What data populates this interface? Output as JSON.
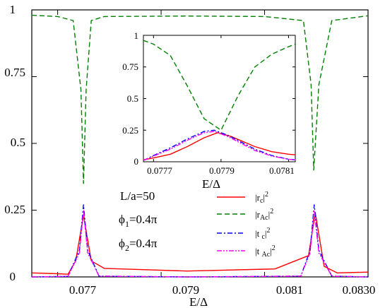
{
  "chart_data": [
    {
      "type": "line",
      "role": "main",
      "xlabel": "E/Δ",
      "ylabel": "",
      "xlim": [
        0.0765,
        0.083
      ],
      "ylim": [
        0,
        1
      ],
      "x_ticks": [
        0.077,
        0.079,
        0.081,
        0.083
      ],
      "x_tick_labels": [
        "0.077",
        "0.079",
        "0.081",
        "0.0830"
      ],
      "y_ticks": [
        0,
        0.25,
        0.5,
        0.75,
        1
      ],
      "y_tick_labels": [
        "0",
        "0.25",
        "0.5",
        "0.75",
        "1"
      ],
      "annotations": [
        {
          "text": "L/a=50"
        },
        {
          "base": "ϕ",
          "sub": "1",
          "tail": "=0.4π"
        },
        {
          "base": "ϕ",
          "sub": "2",
          "tail": "=0.4π"
        }
      ],
      "legend": {
        "placement": "bottom-right",
        "entries": [
          {
            "pre": "|r",
            "sub": "c",
            "post": "|",
            "sup": "2",
            "color": "#ff0000",
            "dash": "solid"
          },
          {
            "pre": "|r",
            "sub": "Ac",
            "post": "|",
            "sup": "2",
            "color": "#008000",
            "dash": "dashed"
          },
          {
            "pre": "|t ",
            "sub": "c",
            "post": "|",
            "sup": "2",
            "color": "#0000ff",
            "dash": "dashdot"
          },
          {
            "pre": "|t ",
            "sub": "Ac",
            "post": "|",
            "sup": "2",
            "color": "#ff00ff",
            "dash": "dashdotdot"
          }
        ]
      },
      "series": [
        {
          "key": "rAc",
          "color": "#008000",
          "x": [
            0.0765,
            0.077,
            0.0773,
            0.07745,
            0.0775,
            0.07755,
            0.07765,
            0.0779,
            0.0795,
            0.081,
            0.08175,
            0.0819,
            0.08195,
            0.08205,
            0.0823,
            0.083
          ],
          "y": [
            0.98,
            0.975,
            0.96,
            0.7,
            0.35,
            0.7,
            0.96,
            0.975,
            0.977,
            0.975,
            0.96,
            0.72,
            0.4,
            0.72,
            0.96,
            0.978
          ]
        },
        {
          "key": "rc",
          "color": "#ff0000",
          "x": [
            0.0765,
            0.077,
            0.0772,
            0.07735,
            0.0775,
            0.07765,
            0.0779,
            0.0795,
            0.0812,
            0.08185,
            0.08198,
            0.08215,
            0.0824,
            0.083
          ],
          "y": [
            0.015,
            0.012,
            0.01,
            0.06,
            0.23,
            0.06,
            0.032,
            0.022,
            0.03,
            0.08,
            0.24,
            0.04,
            0.015,
            0.018
          ]
        },
        {
          "key": "tc",
          "color": "#0000ff",
          "x": [
            0.0765,
            0.0772,
            0.07742,
            0.0775,
            0.07758,
            0.0778,
            0.0795,
            0.0817,
            0.08188,
            0.08196,
            0.08205,
            0.0823,
            0.083
          ],
          "y": [
            0.0,
            0.002,
            0.1,
            0.27,
            0.1,
            0.003,
            0.0,
            0.003,
            0.1,
            0.27,
            0.1,
            0.003,
            0.0
          ]
        },
        {
          "key": "tAc",
          "color": "#ff00ff",
          "x": [
            0.0765,
            0.0772,
            0.07742,
            0.0775,
            0.07758,
            0.0778,
            0.0795,
            0.0817,
            0.08188,
            0.08196,
            0.08205,
            0.0823,
            0.083
          ],
          "y": [
            0.0,
            0.002,
            0.09,
            0.25,
            0.09,
            0.003,
            0.0,
            0.003,
            0.09,
            0.25,
            0.09,
            0.003,
            0.0
          ]
        }
      ]
    },
    {
      "type": "line",
      "role": "inset",
      "xlabel": "E/Δ",
      "xlim": [
        0.07767,
        0.07812
      ],
      "ylim": [
        0,
        1
      ],
      "x_ticks": [
        0.0777,
        0.0779,
        0.0781
      ],
      "x_tick_labels": [
        "0.0777",
        "0.0779",
        "0.0781"
      ],
      "y_ticks": [
        0,
        0.25,
        0.5,
        0.75,
        1
      ],
      "y_tick_labels": [
        "0",
        "0.25",
        "0.5",
        "0.75",
        "1"
      ],
      "series": [
        {
          "key": "rAc",
          "color": "#008000",
          "x": [
            0.07767,
            0.0777,
            0.07775,
            0.0778,
            0.07785,
            0.0779,
            0.07795,
            0.078,
            0.07805,
            0.0781,
            0.07812
          ],
          "y": [
            0.96,
            0.93,
            0.84,
            0.6,
            0.34,
            0.25,
            0.52,
            0.75,
            0.85,
            0.91,
            0.93
          ]
        },
        {
          "key": "rc",
          "color": "#ff0000",
          "x": [
            0.07767,
            0.0777,
            0.07775,
            0.0778,
            0.07785,
            0.07789,
            0.07793,
            0.078,
            0.07805,
            0.0781,
            0.07812
          ],
          "y": [
            0.015,
            0.03,
            0.06,
            0.12,
            0.19,
            0.23,
            0.2,
            0.12,
            0.08,
            0.06,
            0.055
          ]
        },
        {
          "key": "tc",
          "color": "#0000ff",
          "x": [
            0.07767,
            0.0777,
            0.07775,
            0.0778,
            0.07785,
            0.07788,
            0.07792,
            0.078,
            0.07805,
            0.0781,
            0.07812
          ],
          "y": [
            0.01,
            0.05,
            0.11,
            0.18,
            0.24,
            0.25,
            0.21,
            0.1,
            0.05,
            0.02,
            0.015
          ]
        },
        {
          "key": "tAc",
          "color": "#ff00ff",
          "x": [
            0.07767,
            0.0777,
            0.07775,
            0.0778,
            0.07785,
            0.07788,
            0.07792,
            0.078,
            0.07805,
            0.0781,
            0.07812
          ],
          "y": [
            0.01,
            0.045,
            0.1,
            0.17,
            0.23,
            0.24,
            0.2,
            0.09,
            0.045,
            0.02,
            0.015
          ]
        }
      ]
    }
  ]
}
